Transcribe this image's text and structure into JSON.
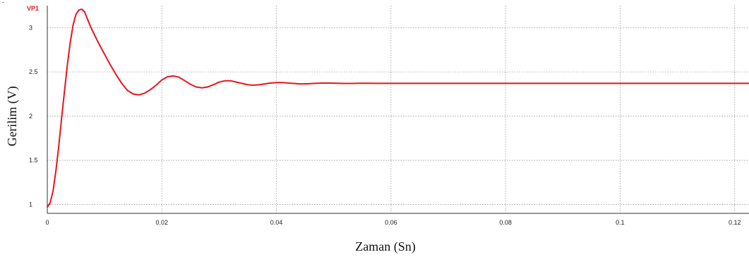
{
  "corner_mark": "-",
  "chart_data": {
    "type": "line",
    "title": "",
    "xlabel": "Zaman (Sn)",
    "ylabel": "Gerilim (V)",
    "xlim": [
      0,
      0.1225
    ],
    "ylim": [
      0.9,
      3.25
    ],
    "xticks": [
      0,
      0.02,
      0.04,
      0.06,
      0.08,
      0.1,
      0.12
    ],
    "yticks": [
      1,
      1.5,
      2,
      2.5,
      3
    ],
    "grid": true,
    "legend_position": "top-left",
    "series": [
      {
        "name": "VP1",
        "color": "#e8141e",
        "x": [
          0,
          0.0005,
          0.001,
          0.0015,
          0.002,
          0.0025,
          0.003,
          0.0035,
          0.004,
          0.0045,
          0.005,
          0.0055,
          0.006,
          0.0065,
          0.007,
          0.0075,
          0.008,
          0.009,
          0.01,
          0.011,
          0.012,
          0.013,
          0.014,
          0.015,
          0.016,
          0.017,
          0.018,
          0.019,
          0.02,
          0.021,
          0.022,
          0.023,
          0.024,
          0.025,
          0.026,
          0.027,
          0.028,
          0.029,
          0.03,
          0.031,
          0.032,
          0.033,
          0.034,
          0.035,
          0.036,
          0.037,
          0.038,
          0.039,
          0.04,
          0.041,
          0.042,
          0.043,
          0.044,
          0.045,
          0.046,
          0.047,
          0.048,
          0.049,
          0.05,
          0.051,
          0.052,
          0.053,
          0.054,
          0.055,
          0.056,
          0.058,
          0.06,
          0.065,
          0.07,
          0.08,
          0.09,
          0.1,
          0.11,
          0.12,
          0.1225
        ],
        "y": [
          0.97,
          1.02,
          1.15,
          1.38,
          1.66,
          1.98,
          2.28,
          2.58,
          2.83,
          3.03,
          3.15,
          3.2,
          3.21,
          3.18,
          3.1,
          3.02,
          2.95,
          2.82,
          2.7,
          2.58,
          2.47,
          2.37,
          2.29,
          2.25,
          2.24,
          2.26,
          2.3,
          2.35,
          2.41,
          2.445,
          2.455,
          2.44,
          2.4,
          2.36,
          2.33,
          2.32,
          2.33,
          2.355,
          2.385,
          2.4,
          2.4,
          2.385,
          2.37,
          2.355,
          2.35,
          2.355,
          2.365,
          2.375,
          2.38,
          2.38,
          2.375,
          2.37,
          2.365,
          2.365,
          2.368,
          2.372,
          2.374,
          2.374,
          2.373,
          2.371,
          2.37,
          2.37,
          2.371,
          2.372,
          2.372,
          2.371,
          2.371,
          2.371,
          2.371,
          2.371,
          2.371,
          2.371,
          2.371,
          2.371,
          2.371
        ]
      }
    ]
  }
}
